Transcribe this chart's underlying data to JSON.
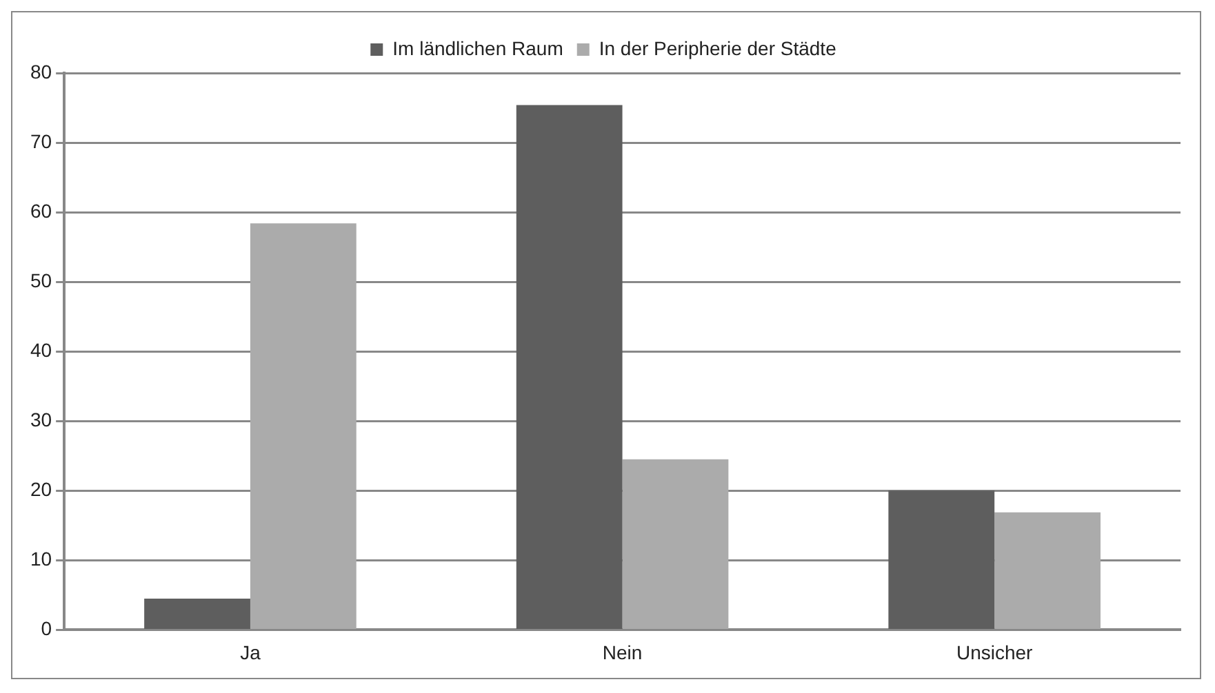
{
  "chart_data": {
    "type": "bar",
    "categories": [
      "Ja",
      "Nein",
      "Unsicher"
    ],
    "series": [
      {
        "name": "Im ländlichen Raum",
        "color": "#5e5e5e",
        "values": [
          4.5,
          75.4,
          20
        ]
      },
      {
        "name": "In der Peripherie der Städte",
        "color": "#ababab",
        "values": [
          58.4,
          24.5,
          16.9
        ]
      }
    ],
    "ylim": [
      0,
      80
    ],
    "yticks": [
      0,
      10,
      20,
      30,
      40,
      50,
      60,
      70,
      80
    ],
    "grid": "y",
    "legend": "top"
  }
}
